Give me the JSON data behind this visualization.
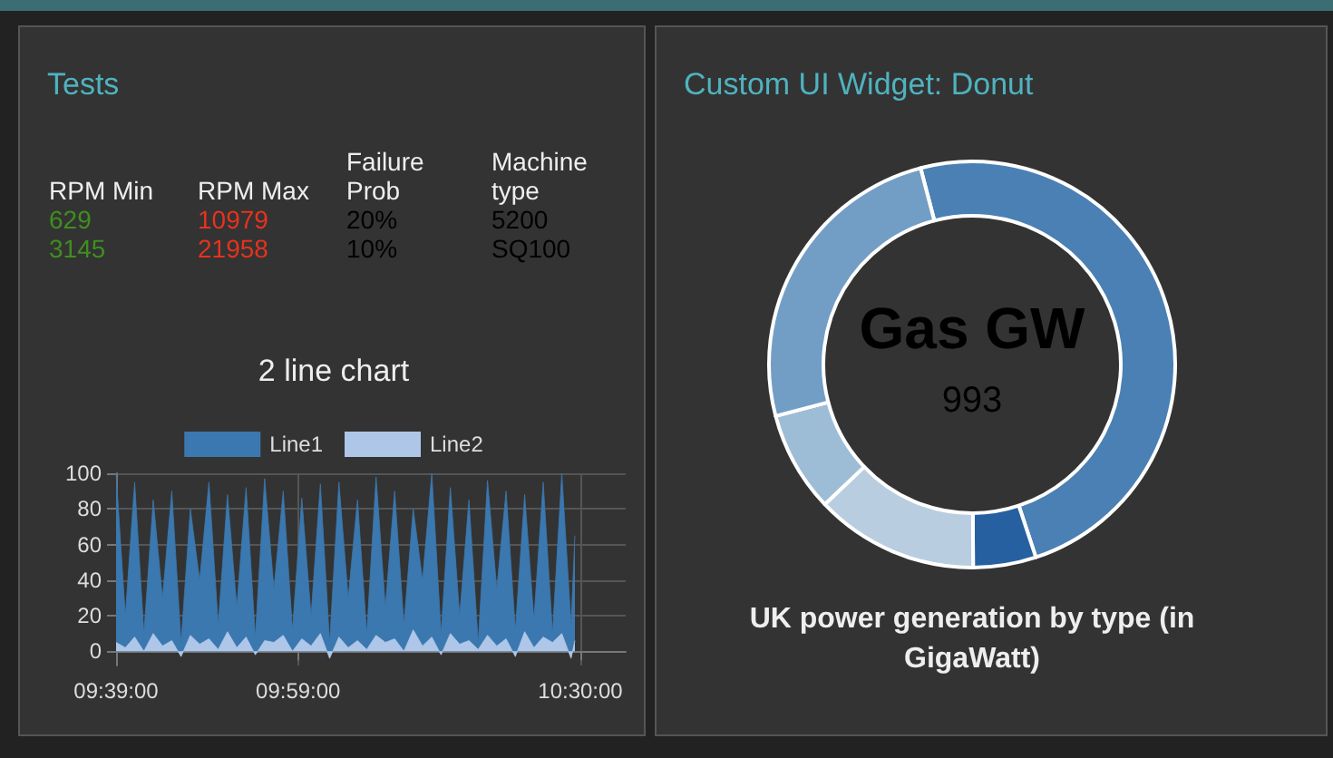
{
  "chart_data": [
    {
      "type": "other",
      "title": "Tests",
      "annotations": [
        "RPM Min",
        "RPM Max",
        "Failure Prob",
        "Machine type",
        "629",
        "10979",
        "20%",
        "5200",
        "3145",
        "21958",
        "10%",
        "SQ100"
      ]
    },
    {
      "type": "area",
      "title": "2 line chart",
      "x": [
        9.65,
        9.667,
        9.684,
        9.701,
        9.718,
        9.735,
        9.752,
        9.769,
        9.786,
        9.803,
        9.82,
        9.837,
        9.854,
        9.871,
        9.888,
        9.905,
        9.922,
        9.939,
        9.956,
        9.973,
        9.99,
        10.007,
        10.024,
        10.041,
        10.058,
        10.075,
        10.092,
        10.109,
        10.126,
        10.143,
        10.16,
        10.177,
        10.194,
        10.211,
        10.228,
        10.245,
        10.262,
        10.279,
        10.296,
        10.313,
        10.33,
        10.347,
        10.364,
        10.381,
        10.398,
        10.415,
        10.432,
        10.449,
        10.466,
        10.483,
        10.49
      ],
      "series": [
        {
          "name": "Line1",
          "color": "#3b78b0",
          "values": [
            100,
            20,
            95,
            10,
            85,
            30,
            90,
            5,
            80,
            40,
            95,
            15,
            88,
            25,
            92,
            8,
            97,
            35,
            90,
            12,
            86,
            20,
            94,
            5,
            95,
            30,
            85,
            10,
            98,
            25,
            90,
            15,
            80,
            40,
            100,
            10,
            92,
            20,
            85,
            5,
            96,
            35,
            90,
            12,
            88,
            18,
            95,
            10,
            100,
            15,
            65
          ]
        },
        {
          "name": "Line2",
          "color": "#aec7e8",
          "values": [
            5,
            2,
            8,
            0,
            10,
            3,
            6,
            -3,
            9,
            4,
            7,
            1,
            11,
            2,
            8,
            -2,
            6,
            5,
            9,
            0,
            7,
            3,
            10,
            -4,
            8,
            2,
            6,
            1,
            9,
            5,
            7,
            0,
            12,
            3,
            8,
            -2,
            10,
            4,
            6,
            1,
            9,
            3,
            7,
            -3,
            11,
            2,
            8,
            5,
            10,
            -4,
            6
          ]
        }
      ],
      "xlim": [
        9.65,
        10.583
      ],
      "xticks": [
        {
          "value": 9.65,
          "label": "09:39:00"
        },
        {
          "value": 9.9833,
          "label": "09:59:00"
        },
        {
          "value": 10.5,
          "label": "10:30:00"
        }
      ],
      "ylim": [
        -8,
        100
      ],
      "yticks": [
        0,
        20,
        40,
        60,
        80,
        100
      ],
      "grid": true,
      "legend": "top",
      "marker": "none"
    },
    {
      "type": "donut",
      "title": "Custom UI Widget: Donut",
      "subtitle": "UK power generation by type (in GigaWatt)",
      "categories": [
        null,
        null,
        null,
        null,
        null
      ],
      "values": [
        49,
        5,
        13,
        8,
        25
      ],
      "colors": [
        "#4a80b4",
        "#2660a0",
        "#b8cde0",
        "#9dbdd7",
        "#729ec6"
      ],
      "annotations": [
        "Gas GW",
        "993"
      ]
    }
  ]
}
